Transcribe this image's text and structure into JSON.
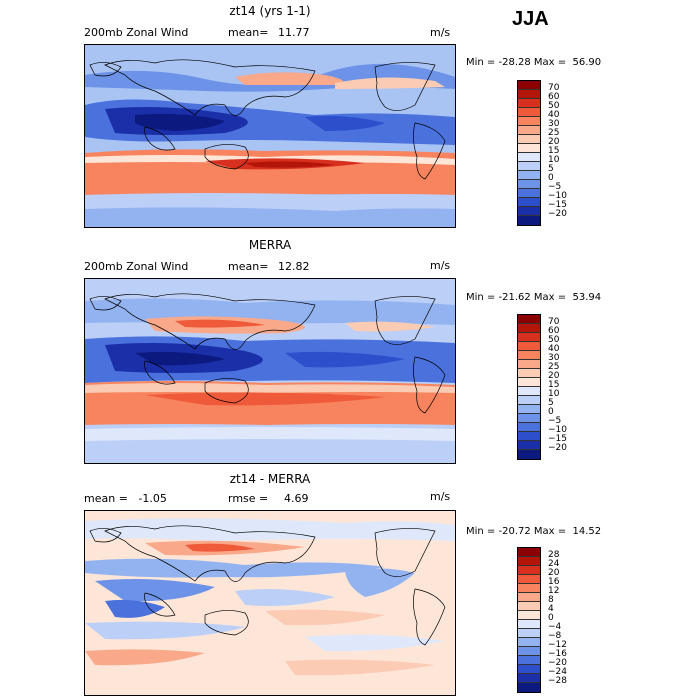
{
  "season": "JJA",
  "panels": [
    {
      "title": "zt14 (yrs 1-1)",
      "left_label": "200mb Zonal Wind",
      "mean_label": "mean=",
      "mean_value": "11.77",
      "units": "m/s",
      "minmax": "Min = -28.28 Max =  56.90",
      "colorbar": {
        "labels": [
          "70",
          "60",
          "50",
          "40",
          "30",
          "25",
          "20",
          "15",
          "10",
          "5",
          "0",
          "−5",
          "−10",
          "−15",
          "−20"
        ],
        "colors": [
          "#8b0000",
          "#b31509",
          "#d7301f",
          "#ef5a3a",
          "#f7845f",
          "#f9a98a",
          "#fbcbb3",
          "#fde6d8",
          "#dfe8fb",
          "#bcd0f7",
          "#93b3f0",
          "#6d93e8",
          "#4a71dc",
          "#2d4fcc",
          "#1a2fa8",
          "#0c1a80"
        ]
      },
      "field": "model"
    },
    {
      "title": "MERRA",
      "left_label": "200mb Zonal Wind",
      "mean_label": "mean=",
      "mean_value": "12.82",
      "units": "m/s",
      "minmax": "Min = -21.62 Max =  53.94",
      "colorbar": {
        "labels": [
          "70",
          "60",
          "50",
          "40",
          "30",
          "25",
          "20",
          "15",
          "10",
          "5",
          "0",
          "−5",
          "−10",
          "−15",
          "−20"
        ],
        "colors": [
          "#8b0000",
          "#b31509",
          "#d7301f",
          "#ef5a3a",
          "#f7845f",
          "#f9a98a",
          "#fbcbb3",
          "#fde6d8",
          "#dfe8fb",
          "#bcd0f7",
          "#93b3f0",
          "#6d93e8",
          "#4a71dc",
          "#2d4fcc",
          "#1a2fa8",
          "#0c1a80"
        ]
      },
      "field": "obs"
    },
    {
      "title": "zt14 - MERRA",
      "left_label": "mean =   -1.05",
      "mean_label": "rmse =",
      "mean_value": "4.69",
      "units": "m/s",
      "minmax": "Min = -20.72 Max =  14.52",
      "colorbar": {
        "labels": [
          "28",
          "24",
          "20",
          "16",
          "12",
          "8",
          "4",
          "0",
          "−4",
          "−8",
          "−12",
          "−16",
          "−20",
          "−24",
          "−28"
        ],
        "colors": [
          "#8b0000",
          "#b31509",
          "#d7301f",
          "#ef5a3a",
          "#f7845f",
          "#f9a98a",
          "#fbcbb3",
          "#fde6d8",
          "#dfe8fb",
          "#bcd0f7",
          "#93b3f0",
          "#6d93e8",
          "#4a71dc",
          "#2d4fcc",
          "#1a2fa8",
          "#0c1a80"
        ]
      },
      "field": "diff"
    }
  ]
}
